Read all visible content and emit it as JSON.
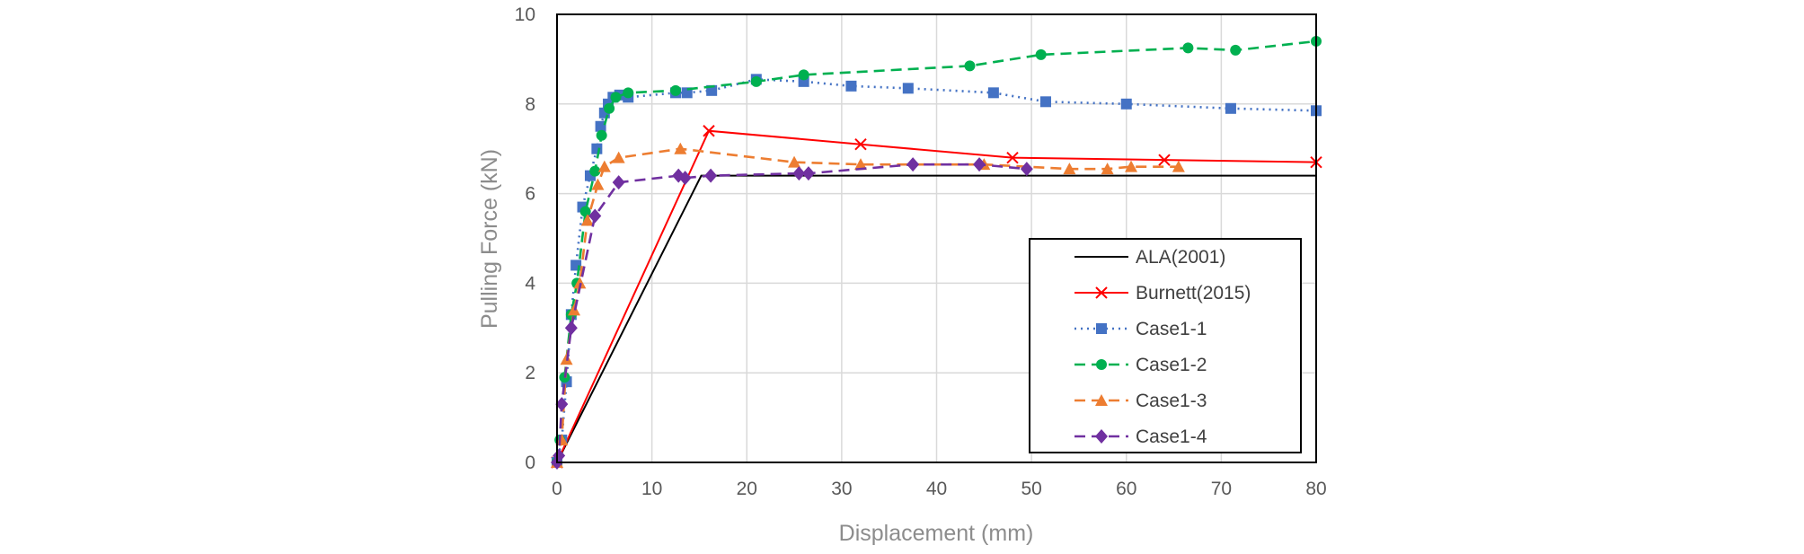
{
  "chart_data": {
    "type": "line",
    "title": "",
    "xlabel": "Displacement (mm)",
    "ylabel": "Pulling Force (kN)",
    "xlim": [
      0,
      80
    ],
    "ylim": [
      0,
      10
    ],
    "xticks": [
      0,
      10,
      20,
      30,
      40,
      50,
      60,
      70,
      80
    ],
    "yticks": [
      0,
      2,
      4,
      6,
      8,
      10
    ],
    "grid": true,
    "legend_position": "bottom-right",
    "series": [
      {
        "name": "ALA(2001)",
        "color": "#000000",
        "dash": "solid",
        "marker": "none",
        "x": [
          0,
          15.2,
          80
        ],
        "y": [
          0,
          6.4,
          6.4
        ]
      },
      {
        "name": "Burnett(2015)",
        "color": "#ff0000",
        "dash": "solid",
        "marker": "x",
        "x": [
          0,
          16,
          32,
          48,
          64,
          80
        ],
        "y": [
          0,
          7.4,
          7.1,
          6.8,
          6.75,
          6.7
        ]
      },
      {
        "name": "Case1-1",
        "color": "#4472c4",
        "dash": "dotted",
        "marker": "square",
        "x": [
          0,
          0.5,
          1,
          1.5,
          2,
          2.7,
          3.5,
          4.2,
          4.6,
          5,
          5.4,
          5.9,
          6.6,
          7.5,
          12.5,
          13.7,
          16.3,
          21,
          26,
          31,
          37,
          46,
          51.5,
          60,
          71,
          80
        ],
        "y": [
          0,
          0.5,
          1.8,
          3.3,
          4.4,
          5.7,
          6.4,
          7.0,
          7.5,
          7.8,
          8.0,
          8.15,
          8.2,
          8.15,
          8.25,
          8.25,
          8.3,
          8.55,
          8.5,
          8.4,
          8.35,
          8.25,
          8.05,
          8.0,
          7.9,
          7.85
        ]
      },
      {
        "name": "Case1-2",
        "color": "#00b050",
        "dash": "dashed",
        "marker": "circle",
        "x": [
          0,
          0.3,
          0.8,
          1.5,
          2.1,
          3.0,
          4.0,
          4.7,
          5.5,
          6.2,
          7.5,
          12.5,
          21,
          26,
          43.5,
          51,
          66.5,
          71.5,
          80
        ],
        "y": [
          0,
          0.5,
          1.9,
          3.3,
          4.0,
          5.6,
          6.5,
          7.3,
          7.9,
          8.15,
          8.25,
          8.3,
          8.5,
          8.65,
          8.85,
          9.1,
          9.25,
          9.2,
          9.4
        ]
      },
      {
        "name": "Case1-3",
        "color": "#ed7d31",
        "dash": "dashed",
        "marker": "triangle",
        "x": [
          0,
          0.5,
          1.0,
          1.8,
          2.4,
          3.2,
          4.3,
          5.0,
          6.5,
          13.0,
          25,
          32,
          45,
          54,
          58,
          60.5,
          65.5
        ],
        "y": [
          0,
          0.5,
          2.3,
          3.4,
          4.0,
          5.4,
          6.2,
          6.6,
          6.8,
          7.0,
          6.7,
          6.65,
          6.65,
          6.55,
          6.55,
          6.6,
          6.6
        ]
      },
      {
        "name": "Case1-4",
        "color": "#7030a0",
        "dash": "dashed",
        "marker": "diamond",
        "x": [
          0,
          0.2,
          0.5,
          1.5,
          4.0,
          6.5,
          12.8,
          13.5,
          16.2,
          25.5,
          26.5,
          37.5,
          44.5,
          49.5
        ],
        "y": [
          0,
          0.15,
          1.3,
          3.0,
          5.5,
          6.25,
          6.4,
          6.35,
          6.4,
          6.45,
          6.45,
          6.65,
          6.65,
          6.55
        ]
      }
    ]
  }
}
